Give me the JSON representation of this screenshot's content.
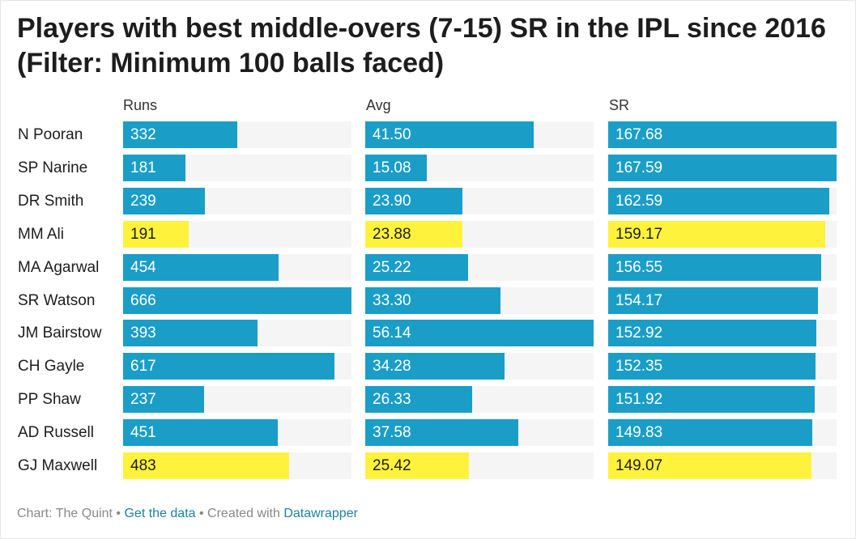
{
  "chart_data": {
    "type": "table",
    "title": "Players with best middle-overs (7-15) SR in the IPL since 2016 (Filter: Minimum 100 balls faced)",
    "columns": [
      "Runs",
      "Avg",
      "SR"
    ],
    "rows": [
      {
        "player": "N Pooran",
        "runs": "332",
        "avg": "41.50",
        "sr": "167.68",
        "highlight": false
      },
      {
        "player": "SP Narine",
        "runs": "181",
        "avg": "15.08",
        "sr": "167.59",
        "highlight": false
      },
      {
        "player": "DR Smith",
        "runs": "239",
        "avg": "23.90",
        "sr": "162.59",
        "highlight": false
      },
      {
        "player": "MM Ali",
        "runs": "191",
        "avg": "23.88",
        "sr": "159.17",
        "highlight": true
      },
      {
        "player": "MA Agarwal",
        "runs": "454",
        "avg": "25.22",
        "sr": "156.55",
        "highlight": false
      },
      {
        "player": "SR Watson",
        "runs": "666",
        "avg": "33.30",
        "sr": "154.17",
        "highlight": false
      },
      {
        "player": "JM Bairstow",
        "runs": "393",
        "avg": "56.14",
        "sr": "152.92",
        "highlight": false
      },
      {
        "player": "CH Gayle",
        "runs": "617",
        "avg": "34.28",
        "sr": "152.35",
        "highlight": false
      },
      {
        "player": "PP Shaw",
        "runs": "237",
        "avg": "26.33",
        "sr": "151.92",
        "highlight": false
      },
      {
        "player": "AD Russell",
        "runs": "451",
        "avg": "37.58",
        "sr": "149.83",
        "highlight": false
      },
      {
        "player": "GJ Maxwell",
        "runs": "483",
        "avg": "25.42",
        "sr": "149.07",
        "highlight": true
      }
    ],
    "max": {
      "runs": 666,
      "avg": 56.14,
      "sr": 167.68
    }
  },
  "colors": {
    "bar": "#1a9ec8",
    "highlight": "#fff23c",
    "bar_text": "#ffffff",
    "highlight_text": "#1d1d1d",
    "track": "#f5f5f5"
  },
  "footer": {
    "source": "Chart: The Quint",
    "sep1": " • ",
    "get_data": "Get the data",
    "sep2": " • Created with ",
    "tool": "Datawrapper"
  }
}
